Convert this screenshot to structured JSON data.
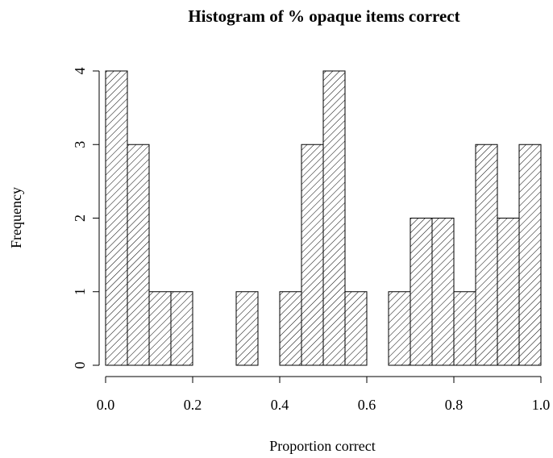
{
  "chart_data": {
    "type": "histogram",
    "title": "Histogram of % opaque items correct",
    "x_label": "Proportion correct",
    "y_label": "Frequency",
    "bins": [
      0,
      0.05,
      0.1,
      0.15,
      0.2,
      0.25,
      0.3,
      0.35,
      0.4,
      0.45,
      0.5,
      0.55,
      0.6,
      0.65,
      0.7,
      0.75,
      0.8,
      0.85,
      0.9,
      0.95,
      1
    ],
    "values": [
      4,
      3,
      1,
      1,
      0,
      0,
      1,
      0,
      1,
      3,
      4,
      1,
      0,
      1,
      2,
      2,
      1,
      3,
      2,
      3
    ],
    "xlim": [
      0,
      1
    ],
    "ylim": [
      0,
      4
    ],
    "xticks": [
      {
        "value": 0,
        "label": "0.0"
      },
      0.2,
      0.4,
      0.6,
      0.8,
      {
        "value": 1,
        "label": "1.0"
      }
    ],
    "yticks": [
      0,
      1,
      2,
      3,
      4
    ],
    "fill": "hatched",
    "color": "#000000"
  }
}
